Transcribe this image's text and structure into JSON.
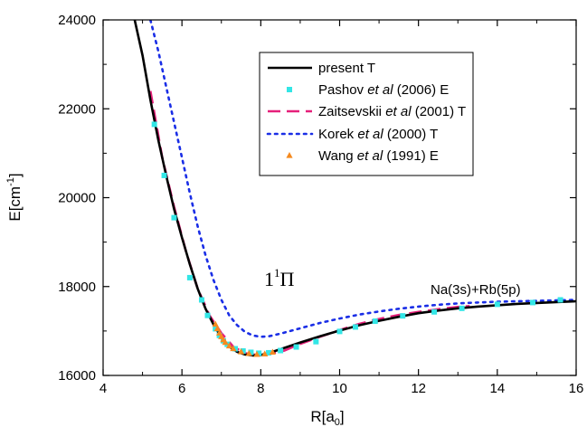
{
  "chart_data": {
    "type": "line",
    "xlabel": "R[a",
    "xlabel_sub": "0",
    "xlabel_end": "]",
    "ylabel": "E[cm",
    "ylabel_sup": "-1",
    "ylabel_end": "]",
    "xlim": [
      4,
      16
    ],
    "ylim": [
      16000,
      24000
    ],
    "x_ticks": [
      4,
      6,
      8,
      10,
      12,
      14,
      16
    ],
    "y_ticks": [
      16000,
      18000,
      20000,
      22000,
      24000
    ],
    "x_tick_labels": [
      "4",
      "6",
      "8",
      "10",
      "12",
      "14",
      "16"
    ],
    "y_tick_labels": [
      "16000",
      "18000",
      "20000",
      "22000",
      "24000"
    ],
    "grid": false,
    "legend_position": "top-right",
    "annotations": {
      "state": "1",
      "state_sup": "1",
      "state_symbol": "Π",
      "asymptote": "Na(3s)+Rb(5p)"
    },
    "series": [
      {
        "name": "present T",
        "legend": {
          "pre": "present T",
          "italic": "",
          "post": ""
        },
        "style": "solid",
        "color": "#000000",
        "x": [
          4.8,
          5.0,
          5.2,
          5.4,
          5.6,
          5.8,
          6.0,
          6.2,
          6.4,
          6.6,
          6.8,
          7.0,
          7.2,
          7.4,
          7.6,
          7.8,
          8.0,
          8.2,
          8.5,
          9.0,
          9.5,
          10.0,
          10.5,
          11.0,
          11.5,
          12.0,
          12.5,
          13.0,
          13.5,
          14.0,
          14.5,
          15.0,
          15.5,
          16.0
        ],
        "y": [
          24000,
          23200,
          22200,
          21300,
          20500,
          19750,
          19100,
          18500,
          17950,
          17500,
          17150,
          16850,
          16650,
          16530,
          16470,
          16450,
          16460,
          16500,
          16590,
          16740,
          16880,
          17010,
          17130,
          17230,
          17320,
          17400,
          17460,
          17510,
          17550,
          17580,
          17610,
          17630,
          17650,
          17670
        ]
      },
      {
        "name": "Pashov et al (2006) E",
        "legend": {
          "pre": "Pashov ",
          "italic": "et al",
          "post": " (2006) E"
        },
        "style": "markers-square",
        "color": "#33e6e6",
        "x": [
          5.3,
          5.55,
          5.8,
          6.2,
          6.5,
          6.65,
          6.85,
          6.95,
          7.05,
          7.15,
          7.35,
          7.55,
          7.75,
          7.95,
          8.2,
          8.5,
          8.9,
          9.4,
          10.0,
          10.4,
          10.9,
          11.6,
          12.4,
          13.1,
          14.0,
          14.9,
          15.6
        ],
        "y": [
          21650,
          20500,
          19550,
          18200,
          17700,
          17350,
          17050,
          16900,
          16780,
          16700,
          16600,
          16550,
          16520,
          16500,
          16510,
          16560,
          16640,
          16760,
          16990,
          17090,
          17220,
          17340,
          17430,
          17510,
          17600,
          17640,
          17700
        ]
      },
      {
        "name": "Zaitsevskii et al (2001) T",
        "legend": {
          "pre": "Zaitsevskii ",
          "italic": "et al",
          "post": " (2001) T"
        },
        "style": "dashed",
        "color": "#e6207a",
        "x": [
          5.2,
          5.5,
          5.8,
          6.1,
          6.4,
          6.7,
          7.0,
          7.3,
          7.6,
          7.9,
          8.2,
          8.6,
          9.0,
          9.5,
          10.0,
          10.5,
          11.0,
          11.5,
          12.0,
          12.5,
          13.0,
          13.3
        ],
        "y": [
          22400,
          20900,
          19800,
          18800,
          17950,
          17350,
          16950,
          16650,
          16500,
          16460,
          16480,
          16560,
          16710,
          16870,
          17020,
          17160,
          17270,
          17360,
          17430,
          17490,
          17540,
          17560
        ]
      },
      {
        "name": "Korek et al (2000) T",
        "legend": {
          "pre": "Korek ",
          "italic": "et al",
          "post": " (2000) T"
        },
        "style": "dotted",
        "color": "#1a2ee6",
        "x": [
          5.2,
          5.4,
          5.6,
          5.8,
          6.0,
          6.2,
          6.4,
          6.6,
          6.8,
          7.0,
          7.2,
          7.4,
          7.6,
          7.8,
          8.0,
          8.2,
          8.5,
          9.0,
          9.5,
          10.0,
          10.5,
          11.0,
          11.5,
          12.0,
          12.5,
          13.0,
          13.5,
          14.0,
          14.5,
          15.0,
          15.5,
          16.0
        ],
        "y": [
          24000,
          23300,
          22500,
          21700,
          20900,
          20100,
          19350,
          18700,
          18150,
          17700,
          17350,
          17130,
          16980,
          16900,
          16870,
          16880,
          16940,
          17060,
          17180,
          17280,
          17370,
          17440,
          17500,
          17550,
          17590,
          17620,
          17640,
          17660,
          17670,
          17680,
          17690,
          17700
        ]
      },
      {
        "name": "Wang et al (1991) E",
        "legend": {
          "pre": "Wang ",
          "italic": "et al",
          "post": " (1991) E"
        },
        "style": "markers-triangle",
        "color": "#f58a1f",
        "x": [
          6.85,
          6.9,
          6.95,
          7.0,
          7.05,
          7.1,
          7.2,
          7.3,
          7.5,
          7.7,
          7.9,
          8.1,
          8.3
        ],
        "y": [
          17150,
          17050,
          16950,
          16870,
          16800,
          16740,
          16660,
          16600,
          16530,
          16490,
          16470,
          16480,
          16520
        ]
      }
    ]
  }
}
